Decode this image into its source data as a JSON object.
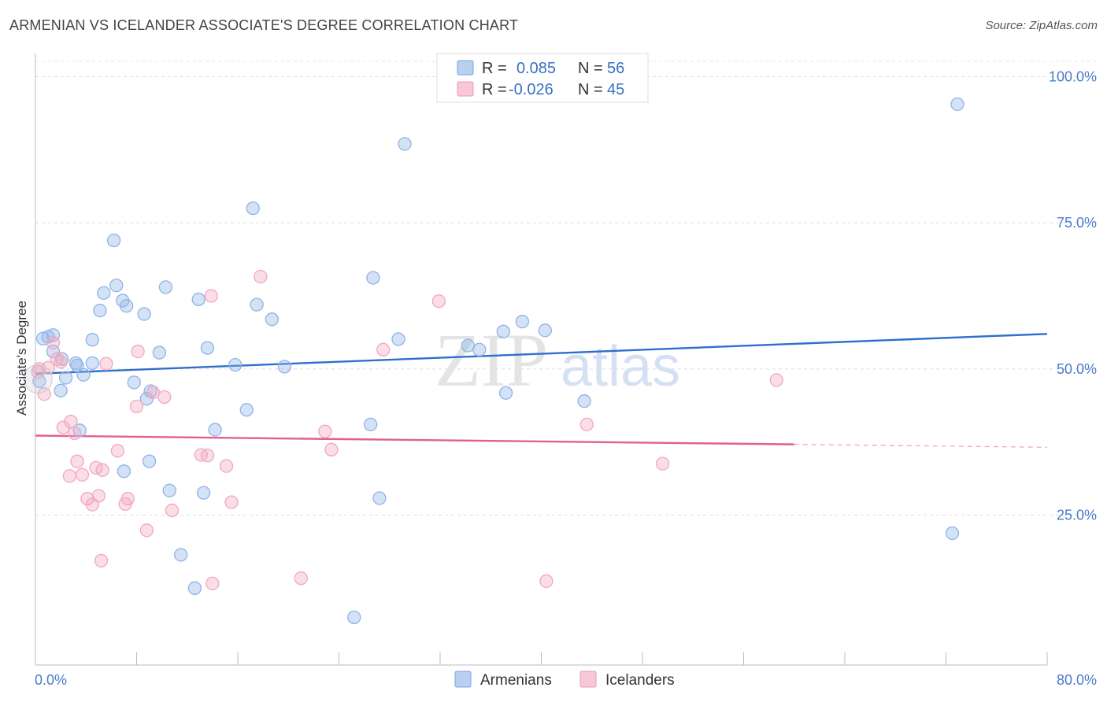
{
  "title": "ARMENIAN VS ICELANDER ASSOCIATE'S DEGREE CORRELATION CHART",
  "source": "Source: ZipAtlas.com",
  "watermark": {
    "zip": "ZIP",
    "atlas": "atlas"
  },
  "chart_data": {
    "type": "scatter",
    "title": "ARMENIAN VS ICELANDER ASSOCIATE'S DEGREE CORRELATION CHART",
    "xlabel": "",
    "ylabel": "Associate's Degree",
    "xlim": [
      0,
      80
    ],
    "ylim": [
      0,
      105
    ],
    "x_tick_labels": [
      {
        "value": 0,
        "label": "0.0%"
      },
      {
        "value": 80,
        "label": "80.0%"
      }
    ],
    "y_tick_labels": [
      {
        "value": 25,
        "label": "25.0%"
      },
      {
        "value": 50,
        "label": "50.0%"
      },
      {
        "value": 75,
        "label": "75.0%"
      },
      {
        "value": 100,
        "label": "100.0%"
      }
    ],
    "grid": true,
    "legend_placement": "top-center",
    "series": [
      {
        "name": "Armenians",
        "color": "#8fb3e8",
        "line_color": "#2e6fcc",
        "R": "0.085",
        "N": "56",
        "trend": {
          "x0": 0,
          "y0": 49.2,
          "x1": 80,
          "y1": 56.0
        },
        "points": [
          [
            0.6,
            55.2
          ],
          [
            1.0,
            55.5
          ],
          [
            1.4,
            55.8
          ],
          [
            1.4,
            53.0
          ],
          [
            2.1,
            51.7
          ],
          [
            2.4,
            48.5
          ],
          [
            2.0,
            46.3
          ],
          [
            3.2,
            51.0
          ],
          [
            3.8,
            49.0
          ],
          [
            4.5,
            51.0
          ],
          [
            4.5,
            55.0
          ],
          [
            3.5,
            39.5
          ],
          [
            5.1,
            60.0
          ],
          [
            5.4,
            63.0
          ],
          [
            6.2,
            72.0
          ],
          [
            6.4,
            64.3
          ],
          [
            6.9,
            61.7
          ],
          [
            7.2,
            60.8
          ],
          [
            7.0,
            32.5
          ],
          [
            7.8,
            47.7
          ],
          [
            8.6,
            59.4
          ],
          [
            8.8,
            44.9
          ],
          [
            9.1,
            46.2
          ],
          [
            9.8,
            52.8
          ],
          [
            10.3,
            64.0
          ],
          [
            10.6,
            29.2
          ],
          [
            11.5,
            18.2
          ],
          [
            12.6,
            12.5
          ],
          [
            12.9,
            61.9
          ],
          [
            13.3,
            28.8
          ],
          [
            13.6,
            53.6
          ],
          [
            14.2,
            39.6
          ],
          [
            15.8,
            50.7
          ],
          [
            16.7,
            43.0
          ],
          [
            17.2,
            77.5
          ],
          [
            17.5,
            61.0
          ],
          [
            18.7,
            58.5
          ],
          [
            19.7,
            50.4
          ],
          [
            25.2,
            7.5
          ],
          [
            26.5,
            40.5
          ],
          [
            26.7,
            65.6
          ],
          [
            27.2,
            27.9
          ],
          [
            28.7,
            55.1
          ],
          [
            29.2,
            88.5
          ],
          [
            34.2,
            54.0
          ],
          [
            35.1,
            53.3
          ],
          [
            37.0,
            56.4
          ],
          [
            37.2,
            45.9
          ],
          [
            38.5,
            58.1
          ],
          [
            40.3,
            56.6
          ],
          [
            43.4,
            44.5
          ],
          [
            72.5,
            21.9
          ],
          [
            72.9,
            95.3
          ],
          [
            0.3,
            47.9
          ],
          [
            3.3,
            50.6
          ],
          [
            9.0,
            34.2
          ]
        ]
      },
      {
        "name": "Icelanders",
        "color": "#f2a7be",
        "line_color": "#e35f8c",
        "R": "-0.026",
        "N": "45",
        "trend": {
          "x0": 0,
          "y0": 38.6,
          "x1": 60,
          "y1": 37.1
        },
        "trend_dashed": {
          "x0": 60,
          "y0": 37.1,
          "x1": 80,
          "y1": 36.6
        },
        "points": [
          [
            0.3,
            50.0
          ],
          [
            0.7,
            45.7
          ],
          [
            1.0,
            50.2
          ],
          [
            1.4,
            54.5
          ],
          [
            1.7,
            51.7
          ],
          [
            2.0,
            51.2
          ],
          [
            2.8,
            41.0
          ],
          [
            3.1,
            39.0
          ],
          [
            3.3,
            34.2
          ],
          [
            2.7,
            31.7
          ],
          [
            3.7,
            31.9
          ],
          [
            2.2,
            40.0
          ],
          [
            4.1,
            27.8
          ],
          [
            4.5,
            26.8
          ],
          [
            4.8,
            33.1
          ],
          [
            5.0,
            28.3
          ],
          [
            5.3,
            32.7
          ],
          [
            5.2,
            17.2
          ],
          [
            5.6,
            50.9
          ],
          [
            6.5,
            36.0
          ],
          [
            7.1,
            26.9
          ],
          [
            7.3,
            27.8
          ],
          [
            8.1,
            53.0
          ],
          [
            8.0,
            43.6
          ],
          [
            8.8,
            22.4
          ],
          [
            9.3,
            46.0
          ],
          [
            10.2,
            45.2
          ],
          [
            10.8,
            25.8
          ],
          [
            13.9,
            62.5
          ],
          [
            13.1,
            35.3
          ],
          [
            13.6,
            35.2
          ],
          [
            14.0,
            13.3
          ],
          [
            15.1,
            33.4
          ],
          [
            15.5,
            27.2
          ],
          [
            17.8,
            65.8
          ],
          [
            21.0,
            14.2
          ],
          [
            22.9,
            39.3
          ],
          [
            23.4,
            36.2
          ],
          [
            27.5,
            53.3
          ],
          [
            31.9,
            61.6
          ],
          [
            40.4,
            13.7
          ],
          [
            43.6,
            40.5
          ],
          [
            49.6,
            33.8
          ],
          [
            58.6,
            48.1
          ],
          [
            0.2,
            49.5
          ]
        ]
      }
    ]
  },
  "legend": {
    "r_label": "R =",
    "n_label": "N =",
    "rows": [
      {
        "r": "0.085",
        "n": "56",
        "swatch_color": "#b9d0f2",
        "swatch_border": "#7aa3df"
      },
      {
        "r": "-0.026",
        "n": "45",
        "swatch_color": "#f8c8d7",
        "swatch_border": "#e99bb5"
      }
    ]
  },
  "bottom_legend": [
    {
      "label": "Armenians",
      "swatch_color": "#b9d0f2",
      "swatch_border": "#7aa3df"
    },
    {
      "label": "Icelanders",
      "swatch_color": "#f8c8d7",
      "swatch_border": "#e99bb5"
    }
  ]
}
